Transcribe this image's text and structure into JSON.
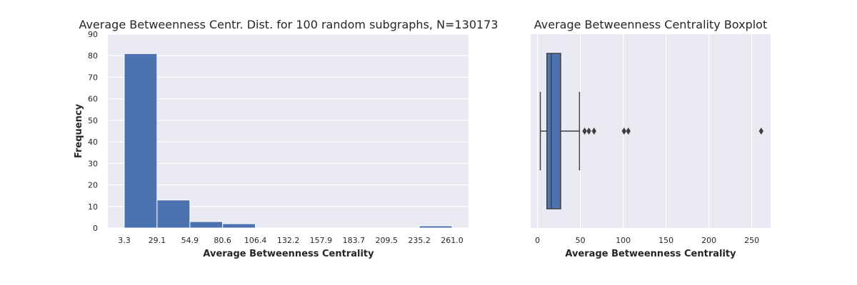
{
  "chart_data": [
    {
      "type": "bar",
      "title": "Average Betweenness Centr. Dist. for 100 random subgraphs, N=130173",
      "xlabel": "Average Betweenness Centrality",
      "ylabel": "Frequency",
      "bin_edges": [
        3.3,
        29.1,
        54.9,
        80.6,
        106.4,
        132.2,
        157.9,
        183.7,
        209.5,
        235.2,
        261.0
      ],
      "xtick_labels": [
        "3.3",
        "29.1",
        "54.9",
        "80.6",
        "106.4",
        "132.2",
        "157.9",
        "183.7",
        "209.5",
        "235.2",
        "261.0"
      ],
      "values": [
        81,
        13,
        3,
        2,
        0,
        0,
        0,
        0,
        0,
        1
      ],
      "ylim": [
        0,
        90
      ],
      "yticks": [
        0,
        10,
        20,
        30,
        40,
        50,
        60,
        70,
        80,
        90
      ],
      "grid": true,
      "color": "#4c72b0",
      "background": "#eaeaf2"
    },
    {
      "type": "boxplot",
      "title": "Average Betweenness Centrality Boxplot",
      "xlabel": "Average Betweenness Centrality",
      "xlim": [
        -8,
        272
      ],
      "xticks": [
        0,
        50,
        100,
        150,
        200,
        250
      ],
      "box": {
        "whisker_low": 3.3,
        "q1": 11,
        "median": 16,
        "q3": 27,
        "whisker_high": 49
      },
      "outliers": [
        55,
        60,
        66,
        101,
        106,
        261
      ],
      "grid": true,
      "color": "#4c72b0",
      "background": "#eaeaf2"
    }
  ]
}
